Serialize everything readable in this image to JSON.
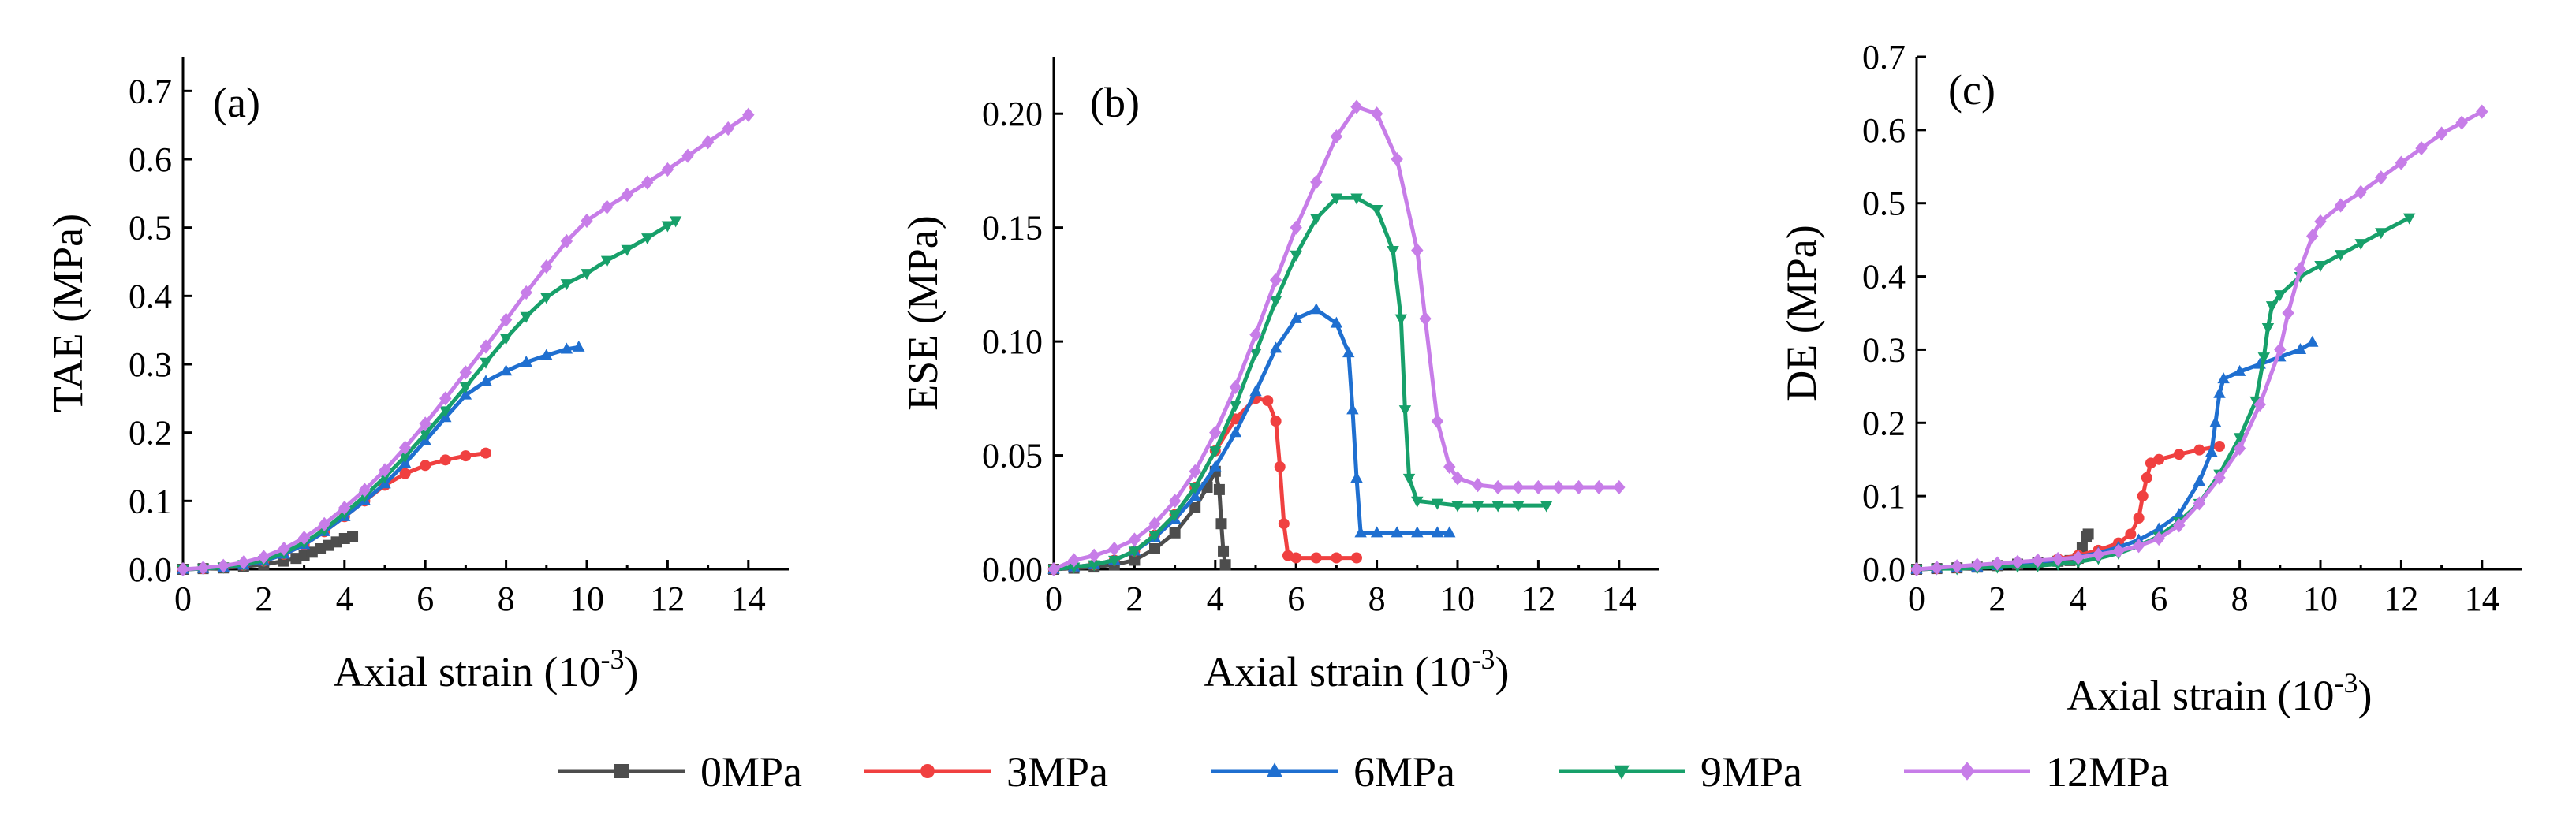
{
  "chart_data": [
    {
      "type": "line",
      "panel_label": "(a)",
      "ylabel": "TAE  (MPa)",
      "xlabel_main": "Axial strain  (10",
      "xlabel_exp": "-3",
      "xlabel_close": ")",
      "xlim": [
        0,
        15
      ],
      "ylim": [
        0,
        0.75
      ],
      "xticks": [
        0,
        2,
        4,
        6,
        8,
        10,
        12,
        14
      ],
      "xtick_labels": [
        "0",
        "2",
        "4",
        "6",
        "8",
        "10",
        "12",
        "14"
      ],
      "yticks": [
        0,
        0.1,
        0.2,
        0.3,
        0.4,
        0.5,
        0.6,
        0.7
      ],
      "ytick_labels": [
        "0.0",
        "0.1",
        "0.2",
        "0.3",
        "0.4",
        "0.5",
        "0.6",
        "0.7"
      ],
      "series": [
        {
          "name": "0MPa",
          "x": [
            0,
            0.5,
            1,
            1.5,
            2,
            2.5,
            2.8,
            3.0,
            3.2,
            3.4,
            3.6,
            3.8,
            4.0,
            4.2
          ],
          "y": [
            0,
            0.001,
            0.002,
            0.004,
            0.007,
            0.012,
            0.016,
            0.02,
            0.025,
            0.03,
            0.035,
            0.04,
            0.045,
            0.048
          ]
        },
        {
          "name": "3MPa",
          "x": [
            0,
            0.5,
            1,
            1.5,
            2,
            2.5,
            3,
            3.5,
            4,
            4.5,
            5,
            5.5,
            6,
            6.5,
            7,
            7.5
          ],
          "y": [
            0,
            0.001,
            0.003,
            0.006,
            0.012,
            0.022,
            0.036,
            0.055,
            0.077,
            0.1,
            0.123,
            0.14,
            0.152,
            0.16,
            0.166,
            0.17
          ]
        },
        {
          "name": "6MPa",
          "x": [
            0,
            0.5,
            1,
            1.5,
            2,
            2.5,
            3,
            3.5,
            4,
            4.5,
            5,
            5.5,
            6,
            6.5,
            7,
            7.5,
            8,
            8.5,
            9,
            9.5,
            9.8
          ],
          "y": [
            0,
            0.001,
            0.003,
            0.006,
            0.012,
            0.022,
            0.036,
            0.055,
            0.077,
            0.1,
            0.125,
            0.155,
            0.188,
            0.222,
            0.255,
            0.275,
            0.29,
            0.303,
            0.313,
            0.322,
            0.325
          ]
        },
        {
          "name": "9MPa",
          "x": [
            0,
            0.5,
            1,
            1.5,
            2,
            2.5,
            3,
            3.5,
            4,
            4.5,
            5,
            5.5,
            6,
            6.5,
            7,
            7.5,
            8,
            8.5,
            9,
            9.5,
            10,
            10.5,
            11,
            11.5,
            12,
            12.2
          ],
          "y": [
            0,
            0.001,
            0.003,
            0.007,
            0.013,
            0.024,
            0.039,
            0.058,
            0.082,
            0.107,
            0.135,
            0.165,
            0.198,
            0.232,
            0.267,
            0.303,
            0.338,
            0.37,
            0.398,
            0.418,
            0.433,
            0.452,
            0.468,
            0.485,
            0.503,
            0.51
          ]
        },
        {
          "name": "12MPa",
          "x": [
            0,
            0.5,
            1,
            1.5,
            2,
            2.5,
            3,
            3.5,
            4,
            4.5,
            5,
            5.5,
            6,
            6.5,
            7,
            7.5,
            8,
            8.5,
            9,
            9.5,
            10,
            10.5,
            11,
            11.5,
            12,
            12.5,
            13,
            13.5,
            14
          ],
          "y": [
            0,
            0.002,
            0.005,
            0.01,
            0.018,
            0.03,
            0.046,
            0.066,
            0.09,
            0.116,
            0.145,
            0.178,
            0.213,
            0.25,
            0.288,
            0.326,
            0.365,
            0.405,
            0.443,
            0.48,
            0.51,
            0.53,
            0.548,
            0.566,
            0.585,
            0.605,
            0.625,
            0.645,
            0.665
          ]
        }
      ]
    },
    {
      "type": "line",
      "panel_label": "(b)",
      "ylabel": "ESE  (MPa)",
      "xlabel_main": "Axial strain  (10",
      "xlabel_exp": "-3",
      "xlabel_close": ")",
      "xlim": [
        0,
        15
      ],
      "ylim": [
        0,
        0.225
      ],
      "xticks": [
        0,
        2,
        4,
        6,
        8,
        10,
        12,
        14
      ],
      "xtick_labels": [
        "0",
        "2",
        "4",
        "6",
        "8",
        "10",
        "12",
        "14"
      ],
      "yticks": [
        0,
        0.05,
        0.1,
        0.15,
        0.2
      ],
      "ytick_labels": [
        "0.00",
        "0.05",
        "0.10",
        "0.15",
        "0.20"
      ],
      "series": [
        {
          "name": "0MPa",
          "x": [
            0,
            0.5,
            1,
            1.5,
            2,
            2.5,
            3,
            3.5,
            3.8,
            4.0,
            4.1,
            4.15,
            4.2,
            4.25
          ],
          "y": [
            0,
            0.0005,
            0.001,
            0.002,
            0.004,
            0.009,
            0.016,
            0.027,
            0.036,
            0.043,
            0.035,
            0.02,
            0.008,
            0.002
          ]
        },
        {
          "name": "3MPa",
          "x": [
            0,
            0.5,
            1,
            1.5,
            2,
            2.5,
            3,
            3.5,
            4,
            4.5,
            5,
            5.3,
            5.5,
            5.6,
            5.7,
            5.8,
            6.0,
            6.5,
            7,
            7.5
          ],
          "y": [
            0,
            0.001,
            0.002,
            0.004,
            0.008,
            0.015,
            0.024,
            0.036,
            0.052,
            0.066,
            0.075,
            0.074,
            0.065,
            0.045,
            0.02,
            0.006,
            0.005,
            0.005,
            0.005,
            0.005
          ]
        },
        {
          "name": "6MPa",
          "x": [
            0,
            0.5,
            1,
            1.5,
            2,
            2.5,
            3,
            3.5,
            4,
            4.5,
            5,
            5.5,
            6,
            6.5,
            7,
            7.3,
            7.4,
            7.5,
            7.6,
            8,
            8.5,
            9,
            9.5,
            9.8
          ],
          "y": [
            0,
            0.001,
            0.002,
            0.004,
            0.008,
            0.014,
            0.022,
            0.032,
            0.045,
            0.06,
            0.078,
            0.097,
            0.11,
            0.114,
            0.108,
            0.095,
            0.07,
            0.04,
            0.016,
            0.016,
            0.016,
            0.016,
            0.016,
            0.016
          ]
        },
        {
          "name": "9MPa",
          "x": [
            0,
            0.5,
            1,
            1.5,
            2,
            2.5,
            3,
            3.5,
            4,
            4.5,
            5,
            5.5,
            6,
            6.5,
            7,
            7.5,
            8,
            8.4,
            8.6,
            8.7,
            8.8,
            9.0,
            9.5,
            10,
            10.5,
            11,
            11.5,
            12.2
          ],
          "y": [
            0,
            0.001,
            0.002,
            0.004,
            0.008,
            0.015,
            0.024,
            0.036,
            0.052,
            0.072,
            0.095,
            0.118,
            0.138,
            0.154,
            0.163,
            0.163,
            0.158,
            0.14,
            0.11,
            0.07,
            0.04,
            0.03,
            0.029,
            0.028,
            0.028,
            0.028,
            0.028,
            0.028
          ]
        },
        {
          "name": "12MPa",
          "x": [
            0,
            0.5,
            1,
            1.5,
            2,
            2.5,
            3,
            3.5,
            4,
            4.5,
            5,
            5.5,
            6,
            6.5,
            7,
            7.5,
            8,
            8.5,
            9,
            9.2,
            9.5,
            9.8,
            10,
            10.5,
            11,
            11.5,
            12,
            12.5,
            13,
            13.5,
            14
          ],
          "y": [
            0,
            0.004,
            0.006,
            0.009,
            0.013,
            0.02,
            0.03,
            0.043,
            0.06,
            0.08,
            0.103,
            0.127,
            0.15,
            0.17,
            0.19,
            0.203,
            0.2,
            0.18,
            0.14,
            0.11,
            0.065,
            0.045,
            0.04,
            0.037,
            0.036,
            0.036,
            0.036,
            0.036,
            0.036,
            0.036,
            0.036
          ]
        }
      ]
    },
    {
      "type": "line",
      "panel_label": "(c)",
      "ylabel": "DE  (MPa)",
      "xlabel_main": "Axial strain  (10",
      "xlabel_exp": "-3",
      "xlabel_close": ")",
      "xlim": [
        0,
        15
      ],
      "ylim": [
        0,
        0.7
      ],
      "xticks": [
        0,
        2,
        4,
        6,
        8,
        10,
        12,
        14
      ],
      "xtick_labels": [
        "0",
        "2",
        "4",
        "6",
        "8",
        "10",
        "12",
        "14"
      ],
      "yticks": [
        0,
        0.1,
        0.2,
        0.3,
        0.4,
        0.5,
        0.6,
        0.7
      ],
      "ytick_labels": [
        "0.0",
        "0.1",
        "0.2",
        "0.3",
        "0.4",
        "0.5",
        "0.6",
        "0.7"
      ],
      "series": [
        {
          "name": "0MPa",
          "x": [
            0,
            0.5,
            1,
            1.5,
            2,
            2.5,
            3,
            3.5,
            3.8,
            4.0,
            4.1,
            4.2,
            4.25
          ],
          "y": [
            0,
            0.001,
            0.002,
            0.003,
            0.005,
            0.007,
            0.009,
            0.011,
            0.012,
            0.015,
            0.03,
            0.045,
            0.048
          ]
        },
        {
          "name": "3MPa",
          "x": [
            0,
            0.5,
            1,
            1.5,
            2,
            2.5,
            3,
            3.5,
            4,
            4.5,
            5,
            5.3,
            5.5,
            5.6,
            5.7,
            5.8,
            6.0,
            6.5,
            7,
            7.5
          ],
          "y": [
            0,
            0.001,
            0.002,
            0.003,
            0.005,
            0.007,
            0.01,
            0.014,
            0.019,
            0.026,
            0.036,
            0.048,
            0.07,
            0.1,
            0.125,
            0.145,
            0.15,
            0.157,
            0.163,
            0.168
          ]
        },
        {
          "name": "6MPa",
          "x": [
            0,
            0.5,
            1,
            1.5,
            2,
            2.5,
            3,
            3.5,
            4,
            4.5,
            5,
            5.5,
            6,
            6.5,
            7,
            7.3,
            7.4,
            7.5,
            7.6,
            8,
            8.5,
            9,
            9.5,
            9.8
          ],
          "y": [
            0,
            0.001,
            0.002,
            0.003,
            0.005,
            0.007,
            0.01,
            0.013,
            0.017,
            0.022,
            0.03,
            0.04,
            0.055,
            0.075,
            0.12,
            0.16,
            0.2,
            0.24,
            0.26,
            0.27,
            0.28,
            0.29,
            0.3,
            0.31
          ]
        },
        {
          "name": "9MPa",
          "x": [
            0,
            0.5,
            1,
            1.5,
            2,
            2.5,
            3,
            3.5,
            4,
            4.5,
            5,
            5.5,
            6,
            6.5,
            7,
            7.5,
            8,
            8.4,
            8.6,
            8.7,
            8.8,
            9.0,
            9.5,
            10,
            10.5,
            11,
            11.5,
            12.2
          ],
          "y": [
            0,
            0.001,
            0.001,
            0.002,
            0.003,
            0.004,
            0.005,
            0.007,
            0.01,
            0.015,
            0.022,
            0.032,
            0.045,
            0.065,
            0.09,
            0.13,
            0.18,
            0.23,
            0.29,
            0.33,
            0.36,
            0.375,
            0.4,
            0.415,
            0.43,
            0.445,
            0.46,
            0.48
          ]
        },
        {
          "name": "12MPa",
          "x": [
            0,
            0.5,
            1,
            1.5,
            2,
            2.5,
            3,
            3.5,
            4,
            4.5,
            5,
            5.5,
            6,
            6.5,
            7,
            7.5,
            8,
            8.5,
            9,
            9.2,
            9.5,
            9.8,
            10,
            10.5,
            11,
            11.5,
            12,
            12.5,
            13,
            13.5,
            14
          ],
          "y": [
            0,
            0.002,
            0.004,
            0.006,
            0.008,
            0.01,
            0.012,
            0.014,
            0.016,
            0.02,
            0.025,
            0.032,
            0.042,
            0.06,
            0.09,
            0.125,
            0.165,
            0.225,
            0.3,
            0.35,
            0.41,
            0.455,
            0.475,
            0.497,
            0.515,
            0.535,
            0.555,
            0.575,
            0.595,
            0.61,
            0.625
          ]
        }
      ]
    }
  ],
  "legend": {
    "position": "bottom-center",
    "entries": [
      "0MPa",
      "3MPa",
      "6MPa",
      "9MPa",
      "12MPa"
    ]
  },
  "series_styles": {
    "0MPa": {
      "color": "#4d4d4d",
      "marker": "square"
    },
    "3MPa": {
      "color": "#f04040",
      "marker": "circle"
    },
    "6MPa": {
      "color": "#1f6fd0",
      "marker": "triangle-up"
    },
    "9MPa": {
      "color": "#17a06a",
      "marker": "triangle-down"
    },
    "12MPa": {
      "color": "#c77de8",
      "marker": "diamond"
    }
  }
}
